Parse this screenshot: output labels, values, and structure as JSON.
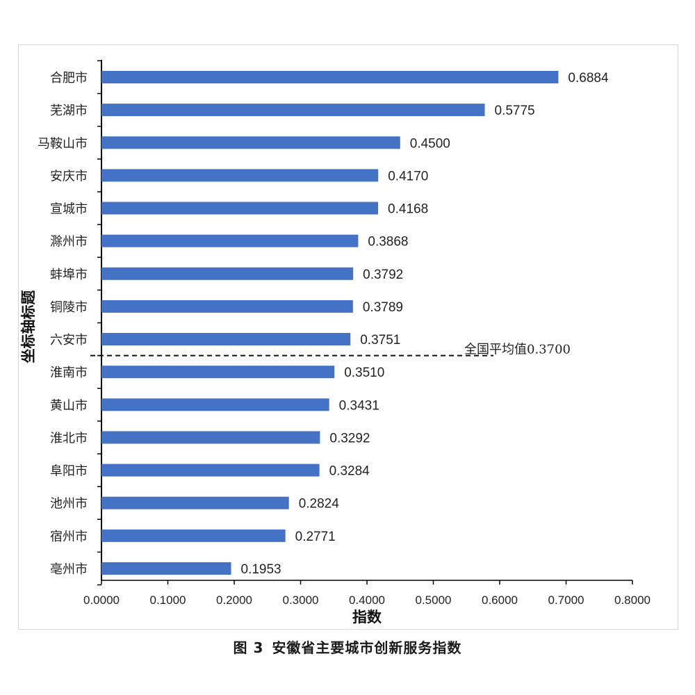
{
  "caption": {
    "figure_label": "图 3",
    "title": "安徽省主要城市创新服务指数"
  },
  "chart_data": {
    "type": "bar",
    "orientation": "horizontal",
    "categories": [
      "合肥市",
      "芜湖市",
      "马鞍山市",
      "安庆市",
      "宣城市",
      "滁州市",
      "蚌埠市",
      "铜陵市",
      "六安市",
      "淮南市",
      "黄山市",
      "淮北市",
      "阜阳市",
      "池州市",
      "宿州市",
      "亳州市"
    ],
    "values": [
      0.6884,
      0.5775,
      0.45,
      0.417,
      0.4168,
      0.3868,
      0.3792,
      0.3789,
      0.3751,
      0.351,
      0.3431,
      0.3292,
      0.3284,
      0.2824,
      0.2771,
      0.1953
    ],
    "value_labels": [
      "0.6884",
      "0.5775",
      "0.4500",
      "0.4170",
      "0.4168",
      "0.3868",
      "0.3792",
      "0.3789",
      "0.3751",
      "0.3510",
      "0.3431",
      "0.3292",
      "0.3284",
      "0.2824",
      "0.2771",
      "0.1953"
    ],
    "xlabel": "指数",
    "ylabel": "坐标轴标题",
    "xlim": [
      0,
      0.8
    ],
    "xticks": [
      "0.0000",
      "0.1000",
      "0.2000",
      "0.3000",
      "0.4000",
      "0.5000",
      "0.6000",
      "0.7000",
      "0.8000"
    ],
    "grid": false,
    "bar_color": "#4472c4",
    "reference_line": {
      "label": "全国平均值0.3700",
      "style": "dashed",
      "position": "between 六安市 and 淮南市"
    }
  }
}
